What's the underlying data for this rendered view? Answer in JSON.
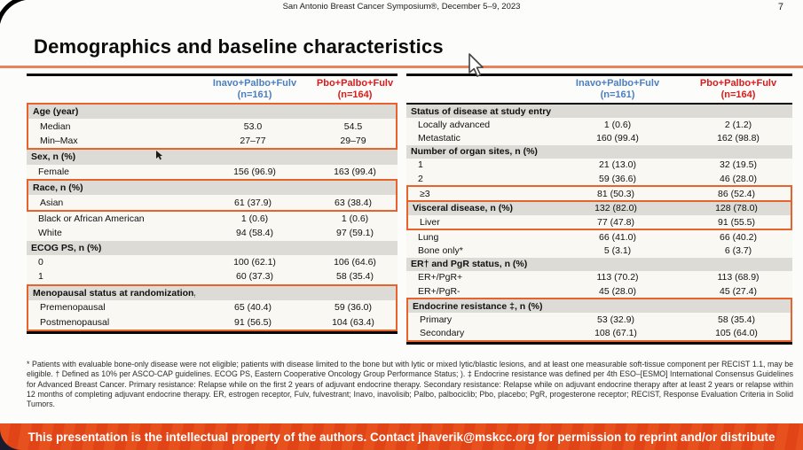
{
  "meta": {
    "conference_line": "San Antonio Breast Cancer Symposium®, December 5–9, 2023",
    "page_number": "7"
  },
  "title": "Demographics and baseline characteristics",
  "columns": {
    "arm1": {
      "name": "Inavo+Palbo+Fulv",
      "n": "(n=161)",
      "color": "#4A7FC1"
    },
    "arm2": {
      "name": "Pbo+Palbo+Fulv",
      "n": "(n=164)",
      "color": "#DD1A1A"
    }
  },
  "highlight_color": "#E8622D",
  "left_table": {
    "rows": [
      {
        "type": "section",
        "label": "Age (year)",
        "v1": "",
        "v2": "",
        "g": "age"
      },
      {
        "type": "data",
        "label": "Median",
        "v1": "53.0",
        "v2": "54.5",
        "g": "age"
      },
      {
        "type": "data",
        "label": "Min–Max",
        "v1": "27–77",
        "v2": "29–79",
        "g": "age"
      },
      {
        "type": "section",
        "label": "Sex, n (%)",
        "v1": "",
        "v2": "",
        "g": null
      },
      {
        "type": "data",
        "label": "Female",
        "v1": "156 (96.9)",
        "v2": "163 (99.4)",
        "g": null
      },
      {
        "type": "section",
        "label": "Race, n (%)",
        "v1": "",
        "v2": "",
        "g": "race"
      },
      {
        "type": "data",
        "label": "Asian",
        "v1": "61 (37.9)",
        "v2": "63 (38.4)",
        "g": "race"
      },
      {
        "type": "data",
        "label": "Black or African American",
        "v1": "1 (0.6)",
        "v2": "1 (0.6)",
        "g": null
      },
      {
        "type": "data",
        "label": "White",
        "v1": "94 (58.4)",
        "v2": "97 (59.1)",
        "g": null
      },
      {
        "type": "section",
        "label": "ECOG PS, n (%)",
        "v1": "",
        "v2": "",
        "g": null
      },
      {
        "type": "data",
        "label": "0",
        "v1": "100 (62.1)",
        "v2": "106 (64.6)",
        "g": null
      },
      {
        "type": "data",
        "label": "1",
        "v1": "60 (37.3)",
        "v2": "58 (35.4)",
        "g": null
      },
      {
        "type": "section",
        "label": "Menopausal status at randomization, n (%)",
        "v1": "",
        "v2": "",
        "g": "meno"
      },
      {
        "type": "data",
        "label": "Premenopausal",
        "v1": "65 (40.4)",
        "v2": "59 (36.0)",
        "g": "meno"
      },
      {
        "type": "data",
        "label": "Postmenopausal",
        "v1": "91 (56.5)",
        "v2": "104 (63.4)",
        "g": "meno"
      }
    ]
  },
  "right_table": {
    "rows": [
      {
        "type": "section",
        "label": "Status of disease at study entry, n (%)",
        "v1": "",
        "v2": "",
        "g": null
      },
      {
        "type": "data",
        "label": "Locally advanced",
        "v1": "1 (0.6)",
        "v2": "2 (1.2)",
        "g": null
      },
      {
        "type": "data",
        "label": "Metastatic",
        "v1": "160 (99.4)",
        "v2": "162 (98.8)",
        "g": null
      },
      {
        "type": "section",
        "label": "Number of organ sites, n (%)",
        "v1": "",
        "v2": "",
        "g": null
      },
      {
        "type": "data",
        "label": "1",
        "v1": "21 (13.0)",
        "v2": "32 (19.5)",
        "g": null
      },
      {
        "type": "data",
        "label": "2",
        "v1": "59 (36.6)",
        "v2": "46 (28.0)",
        "g": null
      },
      {
        "type": "data",
        "label": "≥3",
        "v1": "81 (50.3)",
        "v2": "86 (52.4)",
        "g": "ge3"
      },
      {
        "type": "section_values",
        "label": "Visceral disease, n (%)",
        "v1": "132 (82.0)",
        "v2": "128 (78.0)",
        "g": "visc"
      },
      {
        "type": "data",
        "label": "Liver",
        "v1": "77 (47.8)",
        "v2": "91 (55.5)",
        "g": "visc"
      },
      {
        "type": "data",
        "label": "Lung",
        "v1": "66 (41.0)",
        "v2": "66 (40.2)",
        "g": null
      },
      {
        "type": "data",
        "label": "Bone only*",
        "v1": "5 (3.1)",
        "v2": "6 (3.7)",
        "g": null
      },
      {
        "type": "section",
        "label": "ER† and PgR status, n (%)",
        "v1": "",
        "v2": "",
        "g": null
      },
      {
        "type": "data",
        "label": "ER+/PgR+",
        "v1": "113 (70.2)",
        "v2": "113 (68.9)",
        "g": null
      },
      {
        "type": "data",
        "label": "ER+/PgR-",
        "v1": "45 (28.0)",
        "v2": "45 (27.4)",
        "g": null
      },
      {
        "type": "section",
        "label": "Endocrine resistance ‡, n (%)",
        "v1": "",
        "v2": "",
        "g": "endo"
      },
      {
        "type": "data",
        "label": "Primary",
        "v1": "53 (32.9)",
        "v2": "58 (35.4)",
        "g": "endo"
      },
      {
        "type": "data",
        "label": "Secondary",
        "v1": "108 (67.1)",
        "v2": "105 (64.0)",
        "g": "endo"
      }
    ]
  },
  "footnote": "* Patients with evaluable bone-only disease were not eligible; patients with disease limited to the bone but with lytic or mixed lytic/blastic lesions, and at least one measurable soft-tissue component per RECIST 1.1, may be eligible. † Defined as 10% per ASCO-CAP guidelines. ECOG PS, Eastern Cooperative Oncology Group Performance Status; ). ‡ Endocrine resistance was defined per 4th ESO–[ESMO] International Consensus Guidelines for Advanced Breast Cancer. Primary resistance: Relapse while on the first 2 years of adjuvant endocrine therapy. Secondary resistance: Relapse while on adjuvant endocrine therapy after at least 2 years or relapse within 12 months of completing adjuvant endocrine therapy. ER, estrogen receptor, Fulv, fulvestrant; Inavo, inavolisib; Palbo, palbociclib; Pbo, placebo;  PgR, progesterone receptor; RECIST, Response Evaluation Criteria in Solid Tumors.",
  "banner": {
    "text": "This presentation is the intellectual property of the authors. Contact jhaverik@mskcc.org for permission to reprint and/or distribute",
    "background": "#E64E1C"
  }
}
